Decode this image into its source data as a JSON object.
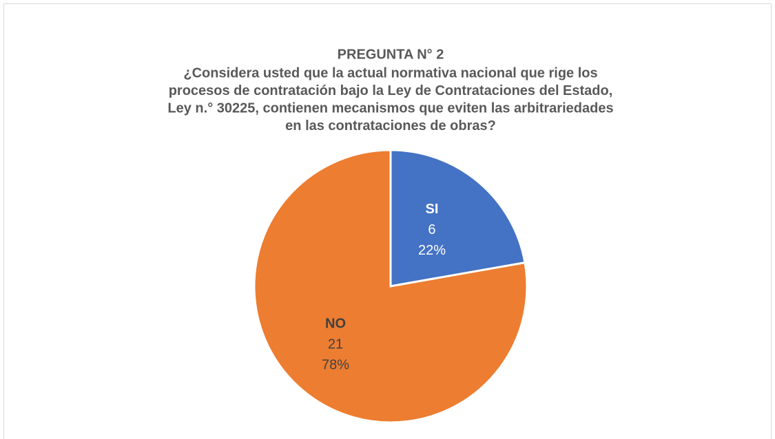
{
  "chart_data": {
    "type": "pie",
    "title": "PREGUNTA N° 2",
    "subtitle": [
      "¿Considera usted que la actual normativa nacional que rige los",
      "procesos de contratación bajo la Ley de Contrataciones del Estado,",
      "Ley n.° 30225, contienen mecanismos que eviten las arbitrariedades",
      "en las contrataciones de obras?"
    ],
    "categories": [
      "SI",
      "NO"
    ],
    "values": [
      6,
      21
    ],
    "percents": [
      22,
      78
    ],
    "percent_labels": [
      "22%",
      "78%"
    ],
    "colors": [
      "#4472c4",
      "#ed7d31"
    ]
  }
}
